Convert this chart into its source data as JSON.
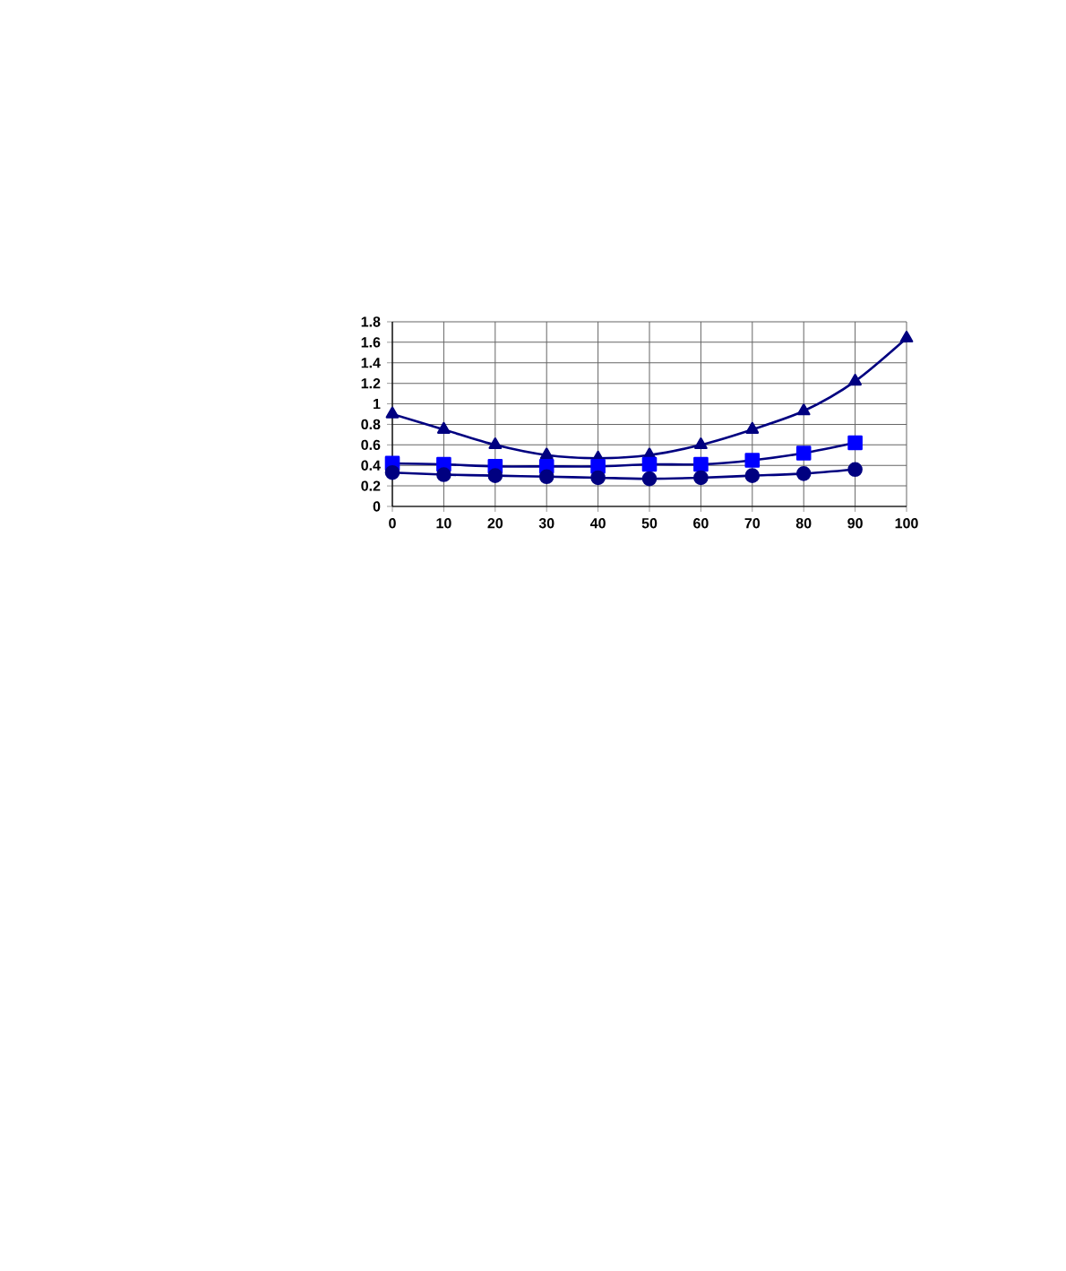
{
  "chart_data": {
    "type": "line",
    "series": [
      {
        "color": "#000080",
        "marker": "triangle",
        "x": [
          0,
          10,
          20,
          30,
          40,
          50,
          60,
          70,
          80,
          90,
          100
        ],
        "values": [
          0.9,
          0.75,
          0.6,
          0.5,
          0.47,
          0.5,
          0.6,
          0.75,
          0.93,
          1.22,
          1.64
        ]
      },
      {
        "color": "#0000ff",
        "marker": "square",
        "x": [
          0,
          10,
          20,
          30,
          40,
          50,
          60,
          70,
          80,
          90
        ],
        "values": [
          0.42,
          0.41,
          0.39,
          0.39,
          0.39,
          0.41,
          0.41,
          0.45,
          0.52,
          0.62
        ]
      },
      {
        "color": "#000080",
        "marker": "circle",
        "x": [
          0,
          10,
          20,
          30,
          40,
          50,
          60,
          70,
          80,
          90
        ],
        "values": [
          0.33,
          0.31,
          0.3,
          0.29,
          0.28,
          0.27,
          0.28,
          0.3,
          0.32,
          0.36
        ]
      }
    ],
    "xlim": [
      0,
      100
    ],
    "xticks": [
      0,
      10,
      20,
      30,
      40,
      50,
      60,
      70,
      80,
      90,
      100
    ],
    "ylim": [
      0,
      1.8
    ],
    "yticks": [
      0,
      0.2,
      0.4,
      0.6,
      0.8,
      1,
      1.2,
      1.4,
      1.6,
      1.8
    ],
    "grid": true,
    "line_style": "solid"
  }
}
